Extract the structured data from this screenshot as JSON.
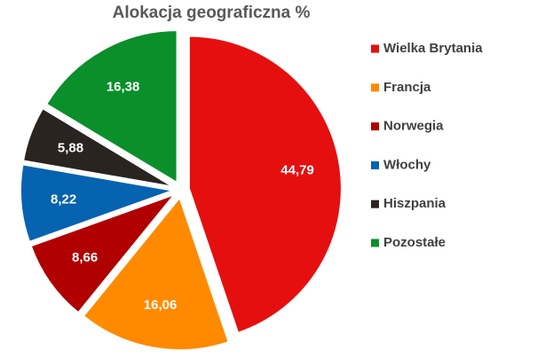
{
  "chart_data": {
    "type": "pie",
    "title": "Alokacja geograficzna %",
    "categories": [
      "Wielka Brytania",
      "Francja",
      "Norwegia",
      "Włochy",
      "Hiszpania",
      "Pozostałe"
    ],
    "values": [
      44.79,
      16.06,
      8.66,
      8.22,
      5.88,
      16.38
    ],
    "value_labels": [
      "44,79",
      "16,06",
      "8,66",
      "8,22",
      "5,88",
      "16,38"
    ],
    "colors": [
      "#e50f0f",
      "#ff8a00",
      "#b00000",
      "#0563b0",
      "#2a2420",
      "#0a8f2a"
    ],
    "legend": "right"
  }
}
